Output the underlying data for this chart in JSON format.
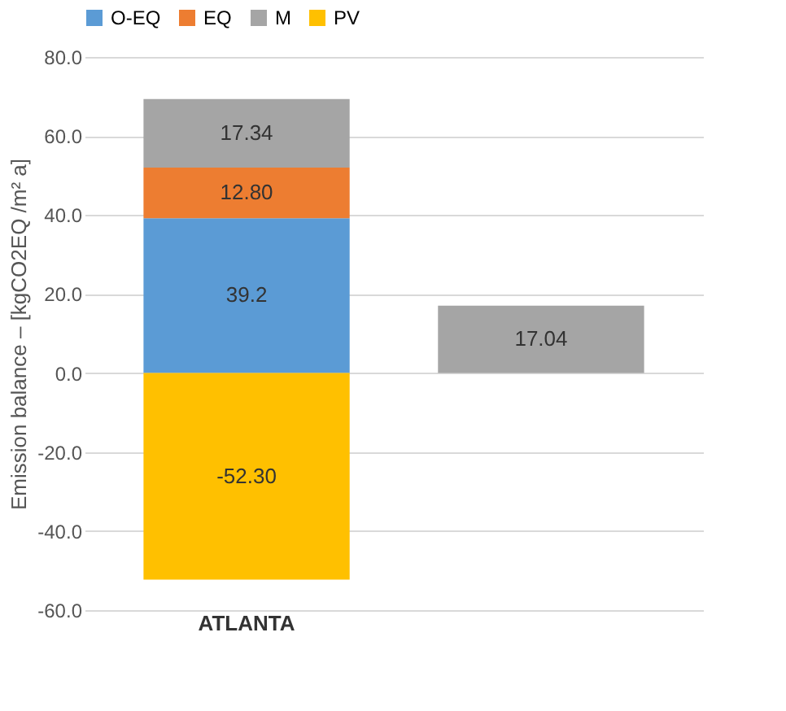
{
  "chart_data": {
    "type": "bar",
    "stacked": true,
    "ylabel": "Emission balance – [kgCO2EQ /m² a]",
    "categories": [
      "ATLANTA",
      null
    ],
    "series": [
      {
        "name": "O-EQ",
        "color": "#5b9bd5",
        "values": [
          39.2,
          null
        ],
        "value_labels": [
          "39.2",
          null
        ]
      },
      {
        "name": "EQ",
        "color": "#ed7d31",
        "values": [
          12.8,
          null
        ],
        "value_labels": [
          "12.80",
          null
        ]
      },
      {
        "name": "M",
        "color": "#a5a5a5",
        "values": [
          17.34,
          17.04
        ],
        "value_labels": [
          "17.34",
          "17.04"
        ]
      },
      {
        "name": "PV",
        "color": "#ffc000",
        "values": [
          -52.3,
          null
        ],
        "value_labels": [
          "-52.30",
          null
        ]
      }
    ],
    "ylim": [
      -60,
      80
    ],
    "yticks": [
      {
        "value": -60,
        "label": "-60.0"
      },
      {
        "value": -40,
        "label": "-40.0"
      },
      {
        "value": -20,
        "label": "-20.0"
      },
      {
        "value": 0,
        "label": "0.0"
      },
      {
        "value": 20,
        "label": "20.0"
      },
      {
        "value": 40,
        "label": "40.0"
      },
      {
        "value": 60,
        "label": "60.0"
      },
      {
        "value": 80,
        "label": "80.0"
      }
    ],
    "grid": "y",
    "legend": "top"
  }
}
